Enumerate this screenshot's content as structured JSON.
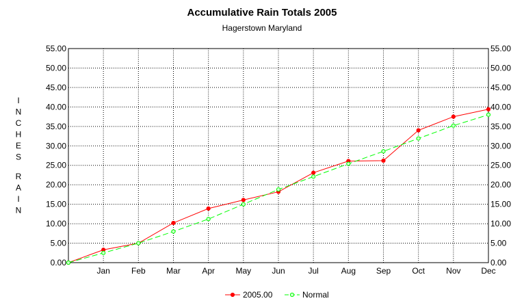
{
  "chart_data": {
    "type": "line",
    "title": "Accumulative Rain Totals 2005",
    "subtitle": "Hagerstown Maryland",
    "ylabel_line1": "I N C H E S",
    "ylabel_line2": "R A I N",
    "x_ticks": [
      "Jan",
      "Feb",
      "Mar",
      "Apr",
      "May",
      "Jun",
      "Jul",
      "Aug",
      "Sep",
      "Oct",
      "Nov",
      "Dec"
    ],
    "y_ticks": [
      "0.00",
      "5.00",
      "10.00",
      "15.00",
      "20.00",
      "25.00",
      "30.00",
      "35.00",
      "40.00",
      "45.00",
      "50.00",
      "55.00"
    ],
    "ylim": [
      0,
      55
    ],
    "grid": true,
    "legend_position": "bottom",
    "series": [
      {
        "name": "2005.00",
        "color": "#ff0000",
        "style": "solid",
        "values": [
          0,
          3.3,
          5.0,
          10.2,
          13.9,
          16.1,
          18.2,
          23.1,
          26.1,
          26.2,
          34.0,
          37.5,
          39.4
        ]
      },
      {
        "name": "Normal",
        "color": "#00ff00",
        "style": "dashed",
        "values": [
          0,
          2.5,
          5.0,
          8.0,
          11.2,
          15.0,
          18.8,
          22.1,
          25.4,
          28.6,
          31.9,
          35.2,
          38.0
        ]
      }
    ]
  }
}
